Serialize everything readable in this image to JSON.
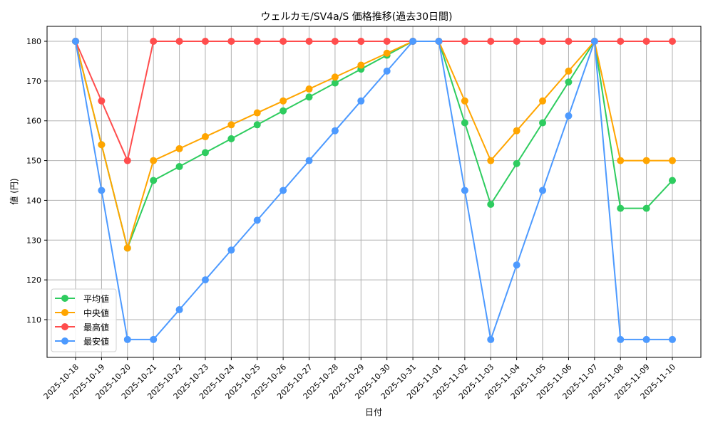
{
  "chart_data": {
    "type": "line",
    "title": "ウェルカモ/SV4a/S 価格推移(過去30日間)",
    "xlabel": "日付",
    "ylabel": "値 (円)",
    "ylim": [
      101.5,
      183.5
    ],
    "yticks": [
      110,
      120,
      130,
      140,
      150,
      160,
      170,
      180
    ],
    "grid": true,
    "legend_position": "lower left",
    "categories": [
      "2025-10-18",
      "2025-10-19",
      "2025-10-20",
      "2025-10-21",
      "2025-10-22",
      "2025-10-23",
      "2025-10-24",
      "2025-10-25",
      "2025-10-26",
      "2025-10-27",
      "2025-10-28",
      "2025-10-29",
      "2025-10-30",
      "2025-10-31",
      "2025-11-01",
      "2025-11-02",
      "2025-11-03",
      "2025-11-04",
      "2025-11-05",
      "2025-11-06",
      "2025-11-07",
      "2025-11-08",
      "2025-11-09",
      "2025-11-10"
    ],
    "series": [
      {
        "name": "平均値",
        "color": "#2ecc5f",
        "values": [
          180,
          154,
          128,
          145,
          148.5,
          152,
          155.5,
          159,
          162.5,
          166,
          169.5,
          173,
          176.5,
          180,
          180,
          159.5,
          139,
          149.25,
          159.5,
          169.75,
          180,
          138,
          138,
          145
        ]
      },
      {
        "name": "中央値",
        "color": "#ffa500",
        "values": [
          180,
          154,
          128,
          150,
          153,
          156,
          159,
          162,
          165,
          168,
          171,
          174,
          177,
          180,
          180,
          165,
          150,
          157.5,
          165,
          172.5,
          180,
          150,
          150,
          150
        ]
      },
      {
        "name": "最高値",
        "color": "#ff4d4d",
        "values": [
          180,
          165,
          150,
          180,
          180,
          180,
          180,
          180,
          180,
          180,
          180,
          180,
          180,
          180,
          180,
          180,
          180,
          180,
          180,
          180,
          180,
          180,
          180,
          180
        ]
      },
      {
        "name": "最安値",
        "color": "#4d9aff",
        "values": [
          180,
          142.5,
          105,
          105,
          112.5,
          120,
          127.5,
          135,
          142.5,
          150,
          157.5,
          165,
          172.5,
          180,
          180,
          142.5,
          105,
          123.75,
          142.5,
          161.25,
          180,
          105,
          105,
          105
        ]
      }
    ]
  }
}
